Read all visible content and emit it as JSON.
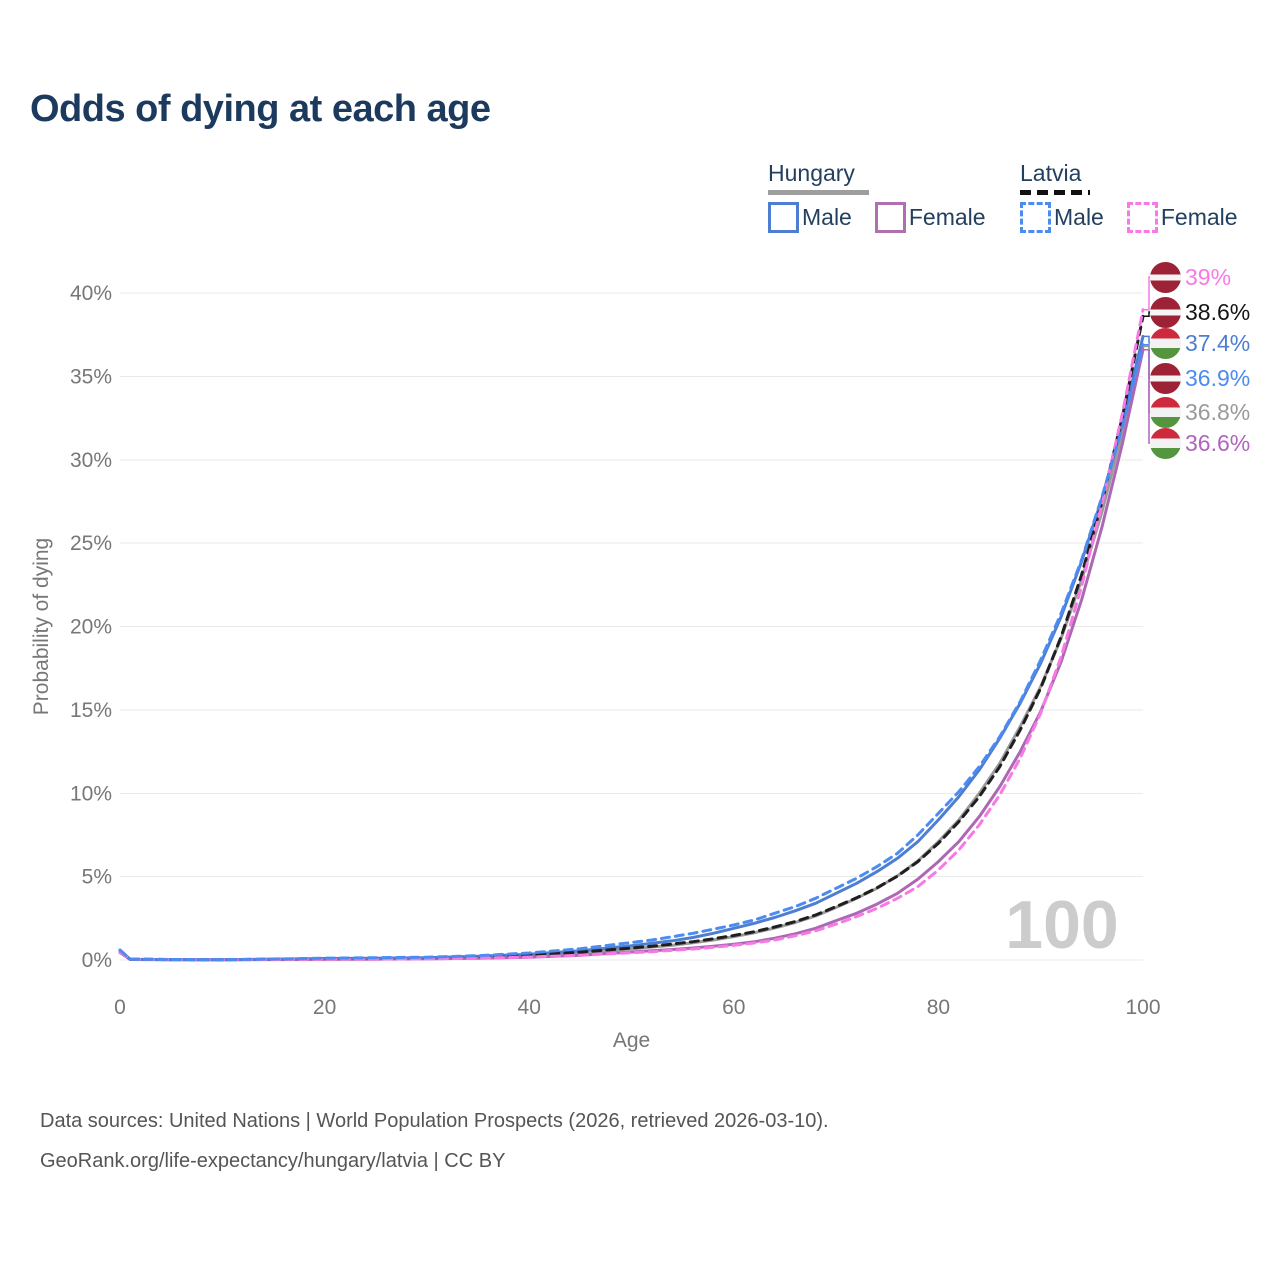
{
  "page": {
    "title": "Odds of dying at each age"
  },
  "legend": {
    "hungary": {
      "title": "Hungary",
      "male_label": "Male",
      "female_label": "Female"
    },
    "latvia": {
      "title": "Latvia",
      "male_label": "Male",
      "female_label": "Female"
    }
  },
  "watermark": "100",
  "source": {
    "line1": "Data sources: United Nations | World Population Prospects (2026, retrieved 2026-03-10).",
    "line2": "GeoRank.org/life-expectancy/hungary/latvia | CC BY"
  },
  "colors": {
    "title_text": "#1c3a5e",
    "axis_text": "#777777",
    "gridline": "#eaeaea",
    "hungary_male": "#4e7ed2",
    "hungary_female": "#ad68b4",
    "hungary_both": "#9a9a9a",
    "latvia_male": "#4b8bf2",
    "latvia_female": "#f879e3",
    "latvia_both": "#1f1f1f",
    "watermark": "#cccccc"
  },
  "chart_data": {
    "type": "line",
    "title": "Odds of dying at each age",
    "xlabel": "Age",
    "ylabel": "Probability of dying",
    "xlim": [
      0,
      100
    ],
    "ylim": [
      0,
      40
    ],
    "grid": "horizontal-only",
    "legend_position": "top-right",
    "xticks": [
      0,
      20,
      40,
      60,
      80,
      100
    ],
    "yticks": [
      {
        "value": 0,
        "label": "0%"
      },
      {
        "value": 5,
        "label": "5%"
      },
      {
        "value": 10,
        "label": "10%"
      },
      {
        "value": 15,
        "label": "15%"
      },
      {
        "value": 20,
        "label": "20%"
      },
      {
        "value": 25,
        "label": "25%"
      },
      {
        "value": 30,
        "label": "30%"
      },
      {
        "value": 35,
        "label": "35%"
      },
      {
        "value": 40,
        "label": "40%"
      }
    ],
    "ages": [
      0,
      1,
      5,
      10,
      15,
      20,
      25,
      30,
      35,
      40,
      45,
      50,
      52,
      54,
      56,
      58,
      60,
      62,
      64,
      66,
      68,
      70,
      72,
      74,
      76,
      78,
      80,
      82,
      84,
      86,
      88,
      90,
      92,
      94,
      96,
      98,
      100
    ],
    "series": [
      {
        "name": "Hungary Male",
        "country": "Hungary",
        "sex": "Male",
        "color": "#4e7ed2",
        "dash": false,
        "values": [
          0.55,
          0.04,
          0.025,
          0.02,
          0.05,
          0.09,
          0.11,
          0.14,
          0.22,
          0.35,
          0.55,
          0.85,
          1.0,
          1.15,
          1.35,
          1.6,
          1.9,
          2.2,
          2.55,
          2.95,
          3.4,
          4.0,
          4.6,
          5.3,
          6.1,
          7.1,
          8.4,
          9.8,
          11.4,
          13.3,
          15.4,
          17.8,
          20.6,
          23.9,
          27.7,
          32.2,
          37.4
        ]
      },
      {
        "name": "Hungary Female",
        "country": "Hungary",
        "sex": "Female",
        "color": "#ad68b4",
        "dash": false,
        "values": [
          0.45,
          0.03,
          0.02,
          0.015,
          0.025,
          0.035,
          0.045,
          0.065,
          0.1,
          0.17,
          0.29,
          0.48,
          0.55,
          0.63,
          0.72,
          0.83,
          0.95,
          1.09,
          1.31,
          1.57,
          1.9,
          2.36,
          2.8,
          3.35,
          4.0,
          4.85,
          5.9,
          7.1,
          8.6,
          10.4,
          12.5,
          14.9,
          17.9,
          21.6,
          26.0,
          31.0,
          36.6
        ]
      },
      {
        "name": "Hungary Both sexes",
        "country": "Hungary",
        "sex": "Both",
        "color": "#9a9a9a",
        "dash": false,
        "values": [
          0.5,
          0.035,
          0.022,
          0.018,
          0.04,
          0.065,
          0.08,
          0.1,
          0.16,
          0.26,
          0.42,
          0.67,
          0.78,
          0.89,
          1.04,
          1.2,
          1.4,
          1.63,
          1.92,
          2.25,
          2.64,
          3.15,
          3.7,
          4.3,
          5.05,
          5.95,
          7.1,
          8.4,
          10.0,
          11.8,
          14.0,
          16.4,
          19.3,
          22.8,
          26.9,
          31.7,
          36.8
        ]
      },
      {
        "name": "Latvia Male",
        "country": "Latvia",
        "sex": "Male",
        "color": "#4b8bf2",
        "dash": true,
        "values": [
          0.6,
          0.05,
          0.03,
          0.02,
          0.06,
          0.11,
          0.14,
          0.17,
          0.26,
          0.42,
          0.68,
          1.05,
          1.2,
          1.4,
          1.6,
          1.85,
          2.1,
          2.4,
          2.8,
          3.2,
          3.7,
          4.3,
          4.9,
          5.6,
          6.4,
          7.5,
          8.8,
          10.1,
          11.6,
          13.4,
          15.5,
          18.0,
          20.8,
          24.0,
          27.8,
          32.0,
          36.9
        ]
      },
      {
        "name": "Latvia Female",
        "country": "Latvia",
        "sex": "Female",
        "color": "#f879e3",
        "dash": true,
        "values": [
          0.5,
          0.04,
          0.025,
          0.015,
          0.03,
          0.045,
          0.055,
          0.07,
          0.11,
          0.18,
          0.29,
          0.44,
          0.5,
          0.58,
          0.66,
          0.76,
          0.88,
          1.02,
          1.2,
          1.45,
          1.75,
          2.15,
          2.6,
          3.1,
          3.7,
          4.4,
          5.4,
          6.6,
          8.1,
          9.9,
          12.1,
          14.8,
          18.2,
          22.4,
          27.4,
          32.8,
          39.0
        ]
      },
      {
        "name": "Latvia Both sexes",
        "country": "Latvia",
        "sex": "Both",
        "color": "#1f1f1f",
        "dash": true,
        "values": [
          0.55,
          0.045,
          0.028,
          0.018,
          0.045,
          0.075,
          0.095,
          0.115,
          0.18,
          0.29,
          0.47,
          0.72,
          0.83,
          0.96,
          1.1,
          1.27,
          1.47,
          1.7,
          1.98,
          2.3,
          2.7,
          3.2,
          3.73,
          4.33,
          5.03,
          5.9,
          7.0,
          8.3,
          9.8,
          11.6,
          13.8,
          16.3,
          19.4,
          23.1,
          27.5,
          32.6,
          38.6
        ]
      }
    ],
    "end_labels": [
      {
        "label": "39%",
        "value": 39.0,
        "series": "Latvia Female",
        "series_index": 4,
        "color": "#f879e3",
        "flag": "latvia"
      },
      {
        "label": "38.6%",
        "value": 38.6,
        "series": "Latvia Both sexes",
        "series_index": 5,
        "color": "#151515",
        "flag": "latvia"
      },
      {
        "label": "37.4%",
        "value": 37.4,
        "series": "Hungary Male",
        "series_index": 0,
        "color": "#4e7ed2",
        "flag": "hungary"
      },
      {
        "label": "36.9%",
        "value": 36.9,
        "series": "Latvia Male",
        "series_index": 3,
        "color": "#4b8bf2",
        "flag": "latvia"
      },
      {
        "label": "36.8%",
        "value": 36.8,
        "series": "Hungary Both sexes",
        "series_index": 2,
        "color": "#9a9a9a",
        "flag": "hungary"
      },
      {
        "label": "36.6%",
        "value": 36.6,
        "series": "Hungary Female",
        "series_index": 1,
        "color": "#b164bd",
        "flag": "hungary"
      }
    ],
    "age_indicator": "100"
  }
}
